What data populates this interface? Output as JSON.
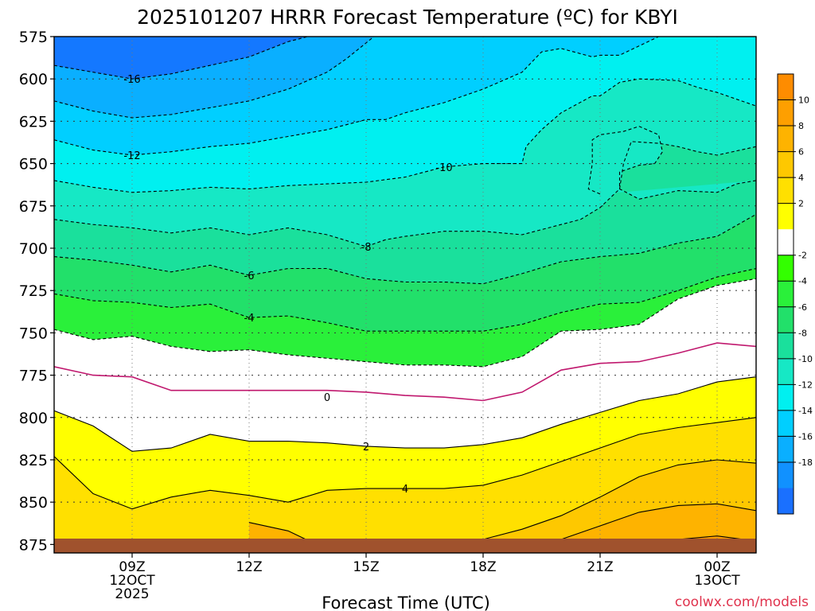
{
  "chart_data": {
    "type": "contour",
    "title": "2025101207 HRRR Forecast Temperature (ºC) for KBYI",
    "xlabel": "Forecast Time (UTC)",
    "credit": "coolwx.com/models",
    "x_range_hours": [
      7,
      25
    ],
    "y_range_hpa": [
      575,
      880
    ],
    "y_ticks": [
      {
        "v": 575,
        "label": "575"
      },
      {
        "v": 600,
        "label": "600"
      },
      {
        "v": 625,
        "label": "625"
      },
      {
        "v": 650,
        "label": "650"
      },
      {
        "v": 675,
        "label": "675"
      },
      {
        "v": 700,
        "label": "700"
      },
      {
        "v": 725,
        "label": "725"
      },
      {
        "v": 750,
        "label": "750"
      },
      {
        "v": 775,
        "label": "775"
      },
      {
        "v": 800,
        "label": "800"
      },
      {
        "v": 825,
        "label": "825"
      },
      {
        "v": 850,
        "label": "850"
      },
      {
        "v": 875,
        "label": "875"
      }
    ],
    "x_ticks": [
      {
        "h": 9,
        "lines": [
          "09Z",
          "12OCT",
          "2025"
        ]
      },
      {
        "h": 12,
        "lines": [
          "12Z"
        ]
      },
      {
        "h": 15,
        "lines": [
          "15Z"
        ]
      },
      {
        "h": 18,
        "lines": [
          "18Z"
        ]
      },
      {
        "h": 21,
        "lines": [
          "21Z"
        ]
      },
      {
        "h": 24,
        "lines": [
          "00Z",
          "13OCT"
        ]
      }
    ],
    "x_grid_hours": [
      9,
      12,
      15,
      18,
      21,
      24
    ],
    "y_grid_hpa": [
      600,
      625,
      650,
      675,
      700,
      725,
      750,
      775,
      800,
      825,
      850,
      875
    ],
    "contours": [
      {
        "level": -16,
        "label": "-16",
        "label_at": [
          9.0,
          600
        ],
        "points": [
          [
            7,
            592
          ],
          [
            8,
            596
          ],
          [
            9,
            600
          ],
          [
            10,
            597
          ],
          [
            11,
            592
          ],
          [
            12,
            587
          ],
          [
            13,
            578
          ],
          [
            13.5,
            575
          ]
        ]
      },
      {
        "level": -14,
        "label": "",
        "points": [
          [
            7,
            613
          ],
          [
            8,
            619
          ],
          [
            9,
            623
          ],
          [
            10,
            621
          ],
          [
            11,
            617
          ],
          [
            12,
            613
          ],
          [
            13,
            606
          ],
          [
            14,
            596
          ],
          [
            14.5,
            588
          ],
          [
            15.2,
            575
          ]
        ]
      },
      {
        "level": -12,
        "label": "-12",
        "label_at": [
          9.0,
          645
        ],
        "points": [
          [
            7,
            636
          ],
          [
            8,
            642
          ],
          [
            9,
            645
          ],
          [
            10,
            643
          ],
          [
            11,
            640
          ],
          [
            12,
            638
          ],
          [
            13,
            634
          ],
          [
            14,
            630
          ],
          [
            15,
            624
          ],
          [
            15.5,
            624
          ],
          [
            16,
            620
          ],
          [
            17,
            614
          ],
          [
            18,
            606
          ],
          [
            19,
            596
          ],
          [
            19.5,
            584
          ],
          [
            20,
            582
          ],
          [
            20.8,
            587
          ],
          [
            21,
            586
          ],
          [
            21.5,
            586
          ],
          [
            22.5,
            575
          ]
        ]
      },
      {
        "level": -10,
        "label": "-10",
        "label_at": [
          17.0,
          652
        ],
        "points": [
          [
            7,
            660
          ],
          [
            8,
            664
          ],
          [
            9,
            667
          ],
          [
            10,
            666
          ],
          [
            11,
            664
          ],
          [
            12,
            665
          ],
          [
            13,
            663
          ],
          [
            14,
            662
          ],
          [
            15,
            661
          ],
          [
            16,
            658
          ],
          [
            17,
            652
          ],
          [
            18,
            650
          ],
          [
            19,
            650
          ],
          [
            19.1,
            640
          ],
          [
            19.5,
            630
          ],
          [
            20,
            620
          ],
          [
            20.8,
            610
          ],
          [
            21,
            610
          ],
          [
            21.5,
            602
          ],
          [
            22,
            600
          ],
          [
            23,
            601
          ],
          [
            23.5,
            605
          ],
          [
            24,
            608
          ],
          [
            25,
            616
          ]
        ]
      },
      {
        "level": -10,
        "label": "",
        "points": [
          [
            21,
            668
          ],
          [
            20.7,
            665
          ],
          [
            20.8,
            650
          ],
          [
            20.8,
            636
          ],
          [
            21,
            633
          ],
          [
            21.6,
            631
          ],
          [
            22,
            628
          ],
          [
            22.5,
            633
          ],
          [
            22.6,
            643
          ],
          [
            22.4,
            650
          ],
          [
            22,
            651
          ],
          [
            21.5,
            655
          ],
          [
            21.5,
            665
          ],
          [
            22,
            671
          ],
          [
            23,
            666
          ],
          [
            24,
            667
          ],
          [
            24.2,
            665
          ],
          [
            24.5,
            662
          ],
          [
            25,
            660
          ]
        ]
      },
      {
        "level": -8,
        "label": "-8",
        "label_at": [
          15.0,
          699
        ],
        "points": [
          [
            7,
            683
          ],
          [
            8,
            686
          ],
          [
            9,
            688
          ],
          [
            10,
            691
          ],
          [
            11,
            688
          ],
          [
            12,
            692
          ],
          [
            13,
            688
          ],
          [
            14,
            692
          ],
          [
            15,
            699
          ],
          [
            15.5,
            695
          ],
          [
            16,
            693
          ],
          [
            17,
            690
          ],
          [
            18,
            690
          ],
          [
            19,
            692
          ],
          [
            20,
            686
          ],
          [
            20.5,
            683
          ],
          [
            21,
            676
          ],
          [
            21.5,
            665
          ],
          [
            21.6,
            650
          ],
          [
            21.8,
            637
          ],
          [
            22.5,
            638
          ],
          [
            23,
            640
          ],
          [
            23.5,
            643
          ],
          [
            24,
            645
          ],
          [
            25,
            640
          ]
        ]
      },
      {
        "level": -6,
        "label": "-6",
        "label_at": [
          12.0,
          716
        ],
        "points": [
          [
            7,
            705
          ],
          [
            8,
            707
          ],
          [
            9,
            710
          ],
          [
            10,
            714
          ],
          [
            11,
            710
          ],
          [
            12,
            716
          ],
          [
            13,
            712
          ],
          [
            14,
            712
          ],
          [
            15,
            718
          ],
          [
            16,
            720
          ],
          [
            17,
            720
          ],
          [
            18,
            721
          ],
          [
            19,
            715
          ],
          [
            20,
            708
          ],
          [
            21,
            705
          ],
          [
            22,
            703
          ],
          [
            23,
            697
          ],
          [
            24,
            693
          ],
          [
            25,
            680
          ]
        ]
      },
      {
        "level": -4,
        "label": "-4",
        "label_at": [
          12.0,
          741
        ],
        "points": [
          [
            7,
            727
          ],
          [
            8,
            731
          ],
          [
            9,
            732
          ],
          [
            10,
            735
          ],
          [
            11,
            733
          ],
          [
            12,
            741
          ],
          [
            13,
            740
          ],
          [
            14,
            744
          ],
          [
            15,
            749
          ],
          [
            16,
            749
          ],
          [
            17,
            749
          ],
          [
            18,
            749
          ],
          [
            19,
            745
          ],
          [
            20,
            738
          ],
          [
            21,
            733
          ],
          [
            22,
            732
          ],
          [
            23,
            725
          ],
          [
            24,
            717
          ],
          [
            25,
            712
          ]
        ]
      },
      {
        "level": -2,
        "label": "",
        "points": [
          [
            7,
            748
          ],
          [
            8,
            754
          ],
          [
            9,
            752
          ],
          [
            10,
            758
          ],
          [
            11,
            761
          ],
          [
            12,
            760
          ],
          [
            13,
            763
          ],
          [
            14,
            765
          ],
          [
            15,
            767
          ],
          [
            16,
            769
          ],
          [
            17,
            769
          ],
          [
            18,
            770
          ],
          [
            19,
            764
          ],
          [
            20,
            749
          ],
          [
            21,
            748
          ],
          [
            22,
            745
          ],
          [
            23,
            730
          ],
          [
            24,
            722
          ],
          [
            25,
            718
          ]
        ]
      },
      {
        "level": 0,
        "label": "0",
        "label_at": [
          14.0,
          788
        ],
        "points": [
          [
            7,
            770
          ],
          [
            8,
            775
          ],
          [
            9,
            776
          ],
          [
            10,
            784
          ],
          [
            11,
            784
          ],
          [
            12,
            784
          ],
          [
            13,
            784
          ],
          [
            14,
            784
          ],
          [
            15,
            785
          ],
          [
            16,
            787
          ],
          [
            17,
            788
          ],
          [
            18,
            790
          ],
          [
            19,
            785
          ],
          [
            20,
            772
          ],
          [
            21,
            768
          ],
          [
            22,
            767
          ],
          [
            23,
            762
          ],
          [
            24,
            756
          ],
          [
            25,
            758
          ]
        ]
      },
      {
        "level": 2,
        "label": "2",
        "label_at": [
          15.0,
          817
        ],
        "points": [
          [
            7,
            796
          ],
          [
            8,
            805
          ],
          [
            9,
            820
          ],
          [
            10,
            818
          ],
          [
            11,
            810
          ],
          [
            12,
            814
          ],
          [
            13,
            814
          ],
          [
            14,
            815
          ],
          [
            15,
            817
          ],
          [
            16,
            818
          ],
          [
            17,
            818
          ],
          [
            18,
            816
          ],
          [
            19,
            812
          ],
          [
            20,
            804
          ],
          [
            21,
            797
          ],
          [
            22,
            790
          ],
          [
            23,
            786
          ],
          [
            24,
            779
          ],
          [
            25,
            776
          ]
        ]
      },
      {
        "level": 4,
        "label": "4",
        "label_at": [
          16.0,
          842
        ],
        "points": [
          [
            7,
            823
          ],
          [
            8,
            845
          ],
          [
            9,
            854
          ],
          [
            10,
            847
          ],
          [
            11,
            843
          ],
          [
            12,
            846
          ],
          [
            13,
            850
          ],
          [
            14,
            843
          ],
          [
            15,
            842
          ],
          [
            16,
            842
          ],
          [
            17,
            842
          ],
          [
            18,
            840
          ],
          [
            19,
            834
          ],
          [
            20,
            826
          ],
          [
            21,
            818
          ],
          [
            22,
            810
          ],
          [
            23,
            806
          ],
          [
            24,
            803
          ],
          [
            25,
            800
          ]
        ]
      },
      {
        "level": 6,
        "label": "",
        "points": [
          [
            9.8,
            880
          ],
          [
            10,
            878
          ],
          [
            12,
            876
          ],
          [
            13,
            873
          ],
          [
            14,
            878
          ],
          [
            15,
            879
          ],
          [
            16,
            877
          ],
          [
            17,
            874
          ],
          [
            18,
            872
          ],
          [
            19,
            866
          ],
          [
            20,
            858
          ],
          [
            21,
            847
          ],
          [
            22,
            835
          ],
          [
            23,
            828
          ],
          [
            24,
            825
          ],
          [
            25,
            827
          ]
        ]
      },
      {
        "level": 8,
        "label": "",
        "points": [
          [
            12,
            862
          ],
          [
            13,
            867
          ],
          [
            14,
            878
          ],
          [
            14.5,
            880
          ]
        ]
      },
      {
        "level": 8,
        "label": "",
        "points": [
          [
            18.5,
            880
          ],
          [
            20,
            872
          ],
          [
            21,
            864
          ],
          [
            22,
            856
          ],
          [
            23,
            852
          ],
          [
            24,
            851
          ],
          [
            25,
            855
          ]
        ]
      },
      {
        "level": 10,
        "label": "",
        "points": [
          [
            22,
            878
          ],
          [
            23,
            872
          ],
          [
            24,
            870
          ],
          [
            25,
            873
          ]
        ]
      }
    ],
    "colorbar": {
      "ticks": [
        "10",
        "8",
        "6",
        "4",
        "2",
        "-2",
        "-4",
        "-6",
        "-8",
        "-10",
        "-12",
        "-14",
        "-16",
        "-18"
      ],
      "colors": [
        "#fe8c00",
        "#fe9f00",
        "#feb300",
        "#fec800",
        "#ffe000",
        "#ffff00",
        "#ffffff",
        "#33ff00",
        "#2af03a",
        "#22e06a",
        "#1ae09c",
        "#16e8c5",
        "#00f0f0",
        "#00cfff",
        "#0aafff",
        "#1191ff",
        "#1a70ff"
      ]
    },
    "ground_color": "#a0522d"
  }
}
